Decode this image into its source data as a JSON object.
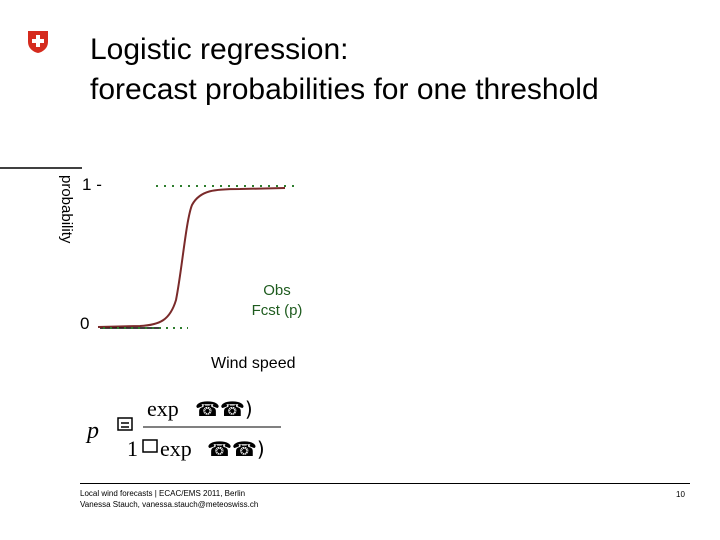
{
  "title": {
    "line1": "Logistic regression:",
    "line2": "forecast probabilities for one threshold"
  },
  "chart_data": {
    "type": "line",
    "ylabel": "probability",
    "xlabel": "Wind speed",
    "yticks": [
      "1",
      "0"
    ],
    "ylim": [
      0,
      1
    ],
    "series": [
      {
        "name": "Obs",
        "style": "dotted",
        "color": "#2e7d2e"
      },
      {
        "name": "Fcst (p)",
        "style": "solid",
        "color": "#7a2a2a"
      }
    ],
    "grid": false
  },
  "formula": {
    "lhs": "p",
    "numerator": "exp",
    "denominator_prefix": "1",
    "denominator_func": "exp"
  },
  "footer": {
    "line1": "Local wind forecasts | ECAC/EMS 2011, Berlin",
    "line2": "Vanessa Stauch, vanessa.stauch@meteoswiss.ch",
    "page": "10"
  },
  "colors": {
    "logo_red": "#d52b1e",
    "fcst_curve": "#7a2a2a",
    "obs_dots": "#2e7d2e"
  }
}
